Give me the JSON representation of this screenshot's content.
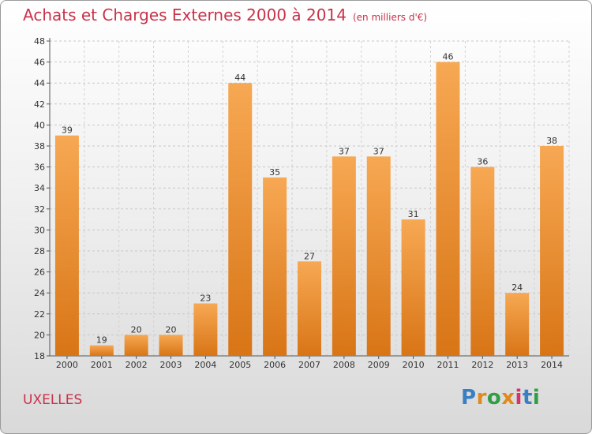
{
  "header": {
    "title": "Achats et Charges Externes 2000 à 2014",
    "subtitle": "(en milliers d'€)"
  },
  "footer": {
    "place": "UXELLES",
    "logo_letters": [
      "P",
      "r",
      "o",
      "x",
      "i",
      "t",
      "i"
    ],
    "logo_colors": [
      "#3a7fc2",
      "#e08a1e",
      "#2f9e44",
      "#e08a1e",
      "#d6336c",
      "#3a7fc2",
      "#2f9e44"
    ]
  },
  "colors": {
    "bar_top": "#f7a853",
    "bar_bottom": "#d87516",
    "title": "#c8324a"
  },
  "chart_data": {
    "type": "bar",
    "title": "Achats et Charges Externes 2000 à 2014",
    "subtitle": "(en milliers d'€)",
    "categories": [
      "2000",
      "2001",
      "2002",
      "2003",
      "2004",
      "2005",
      "2006",
      "2007",
      "2008",
      "2009",
      "2010",
      "2011",
      "2012",
      "2013",
      "2014"
    ],
    "values": [
      39,
      19,
      20,
      20,
      23,
      44,
      35,
      27,
      37,
      37,
      31,
      46,
      36,
      24,
      38
    ],
    "ylim": [
      18,
      48
    ],
    "yticks": [
      18,
      20,
      22,
      24,
      26,
      28,
      30,
      32,
      34,
      36,
      38,
      40,
      42,
      44,
      46,
      48
    ],
    "grid": true,
    "data_labels": true
  }
}
